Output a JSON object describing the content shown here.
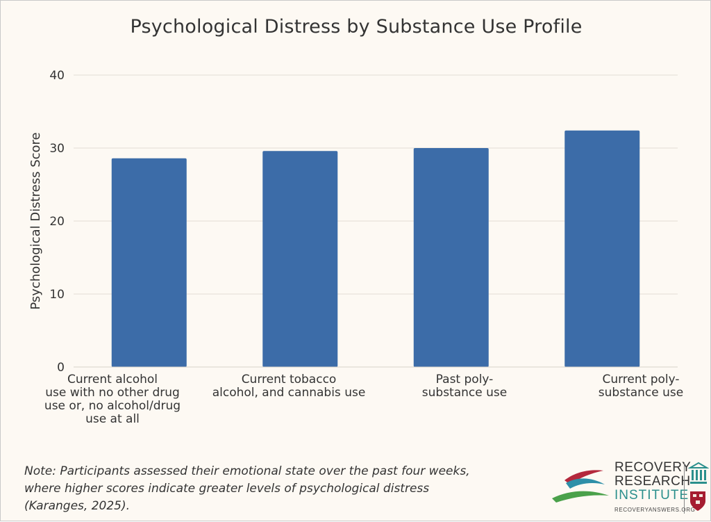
{
  "chart_data": {
    "type": "bar",
    "title": "Psychological Distress by Substance Use Profile",
    "xlabel": "",
    "ylabel": "Psychological Distress Score",
    "categories": [
      "Current alcohol use with no other drug use or, no alcohol/drug use at all",
      "Current tobacco alcohol, and cannabis use",
      "Past poly-substance use",
      "Current poly-substance use"
    ],
    "category_lines": [
      [
        "Current alcohol",
        "use with no other drug",
        "use or, no alcohol/drug",
        "use at all"
      ],
      [
        "Current tobacco",
        "alcohol, and cannabis use"
      ],
      [
        "Past poly-",
        "substance use"
      ],
      [
        "Current poly-",
        "substance use"
      ]
    ],
    "values": [
      28.6,
      29.6,
      30.0,
      32.4
    ],
    "ylim": [
      0,
      40
    ],
    "yticks": [
      0,
      10,
      20,
      30,
      40
    ],
    "grid": true,
    "legend": "none",
    "bar_color": "#3c6ca8",
    "grid_color": "#e2ddd6"
  },
  "note": {
    "lines": [
      "Note: Participants assessed their emotional state over the past four weeks,",
      "where higher scores indicate greater levels of psychological distress",
      "(Karanges, 2025)."
    ]
  },
  "logo": {
    "line1": "RECOVERY",
    "line2": "RESEARCH",
    "line3": "INSTITUTE",
    "url": "RECOVERYANSWERS.ORG",
    "icons": [
      "swoosh-icon",
      "columns-icon",
      "shield-icon"
    ]
  }
}
